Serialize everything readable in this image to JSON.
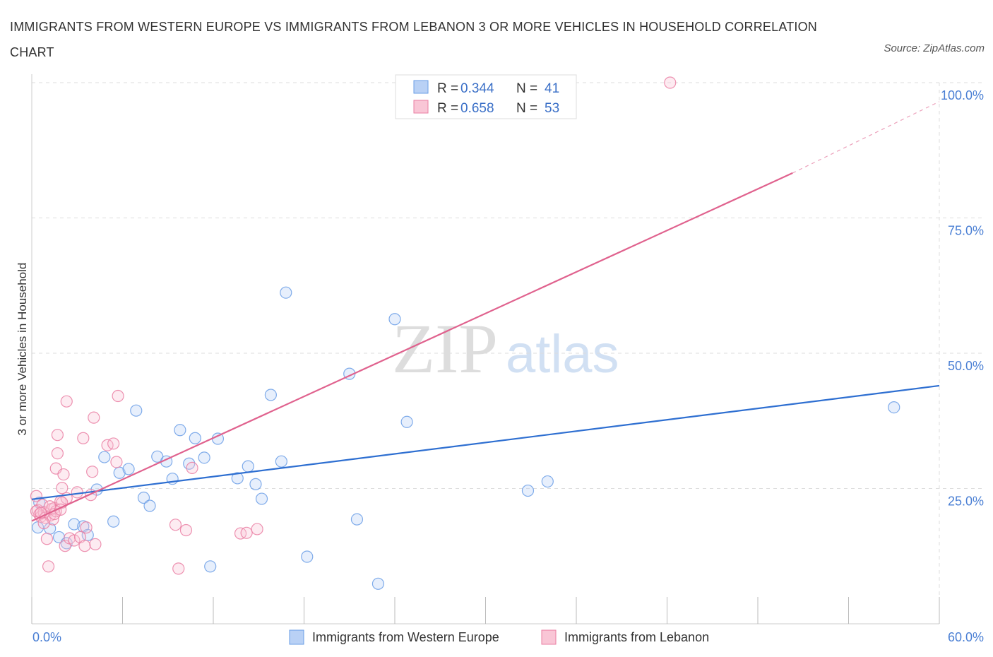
{
  "header": {
    "title": "IMMIGRANTS FROM WESTERN EUROPE VS IMMIGRANTS FROM LEBANON 3 OR MORE VEHICLES IN HOUSEHOLD CORRELATION CHART",
    "source": "Source: ZipAtlas.com"
  },
  "watermark": {
    "zip": "ZIP",
    "atlas": "atlas"
  },
  "stats": {
    "r_label": "R =",
    "n_label": "N =",
    "rows": [
      {
        "r": "0.344",
        "n": "41"
      },
      {
        "r": "0.658",
        "n": "53"
      }
    ]
  },
  "chart_data": {
    "type": "scatter",
    "ylabel": "3 or more Vehicles in Household",
    "xlim": [
      0,
      60
    ],
    "ylim": [
      0,
      100
    ],
    "x_tick_labels": [
      "0.0%",
      "60.0%"
    ],
    "y_ticks": [
      {
        "value": 25,
        "label": "25.0%"
      },
      {
        "value": 50,
        "label": "50.0%"
      },
      {
        "value": 75,
        "label": "75.0%"
      },
      {
        "value": 100,
        "label": "100.0%"
      }
    ],
    "legend_placement": "bottom-center",
    "colors": {
      "blue": "#6a9ee6",
      "pink": "#ea7fa3",
      "blue_line": "#2e6fd1",
      "pink_line": "#e0628e"
    },
    "series": [
      {
        "name": "Immigrants from Western Europe",
        "color": "#6a9ee6",
        "trend": {
          "x": [
            0,
            60
          ],
          "y": [
            23.0,
            44.0
          ]
        },
        "points": [
          [
            0.4,
            17.8
          ],
          [
            1.2,
            17.6
          ],
          [
            1.8,
            16.0
          ],
          [
            2.3,
            14.9
          ],
          [
            2.8,
            18.4
          ],
          [
            3.4,
            18.0
          ],
          [
            3.7,
            16.4
          ],
          [
            4.3,
            24.8
          ],
          [
            4.8,
            30.8
          ],
          [
            5.4,
            18.9
          ],
          [
            5.8,
            27.9
          ],
          [
            6.4,
            28.6
          ],
          [
            6.9,
            39.4
          ],
          [
            7.4,
            23.3
          ],
          [
            7.8,
            21.8
          ],
          [
            8.3,
            30.9
          ],
          [
            8.9,
            30.0
          ],
          [
            9.3,
            26.8
          ],
          [
            9.8,
            35.8
          ],
          [
            10.4,
            29.6
          ],
          [
            10.8,
            34.3
          ],
          [
            11.4,
            30.7
          ],
          [
            11.8,
            10.6
          ],
          [
            12.3,
            34.2
          ],
          [
            13.6,
            26.9
          ],
          [
            14.3,
            29.1
          ],
          [
            14.8,
            25.8
          ],
          [
            15.2,
            23.1
          ],
          [
            15.8,
            42.3
          ],
          [
            16.5,
            30.0
          ],
          [
            16.8,
            61.2
          ],
          [
            18.2,
            12.4
          ],
          [
            21.0,
            46.2
          ],
          [
            21.5,
            19.3
          ],
          [
            22.9,
            7.4
          ],
          [
            24.0,
            56.3
          ],
          [
            24.8,
            37.3
          ],
          [
            32.8,
            24.6
          ],
          [
            34.1,
            26.3
          ],
          [
            57.0,
            40.0
          ],
          [
            0.5,
            22.4
          ]
        ]
      },
      {
        "name": "Immigrants from Lebanon",
        "color": "#ea7fa3",
        "trend": {
          "x": [
            0,
            50.3
          ],
          "y": [
            19.0,
            83.3
          ]
        },
        "trend_dashed": {
          "x": [
            50.3,
            60
          ],
          "y": [
            83.3,
            96.5
          ]
        },
        "points": [
          [
            0.3,
            23.6
          ],
          [
            0.4,
            21.0
          ],
          [
            0.5,
            20.2
          ],
          [
            0.6,
            19.8
          ],
          [
            0.7,
            22.0
          ],
          [
            0.8,
            20.6
          ],
          [
            0.9,
            19.6
          ],
          [
            1.0,
            15.7
          ],
          [
            1.1,
            10.6
          ],
          [
            1.2,
            20.0
          ],
          [
            1.3,
            21.2
          ],
          [
            1.4,
            19.3
          ],
          [
            1.5,
            21.4
          ],
          [
            1.6,
            20.8
          ],
          [
            1.6,
            28.7
          ],
          [
            1.7,
            31.5
          ],
          [
            1.7,
            34.9
          ],
          [
            1.9,
            22.6
          ],
          [
            2.0,
            25.1
          ],
          [
            2.1,
            27.6
          ],
          [
            2.2,
            14.4
          ],
          [
            2.3,
            23.2
          ],
          [
            2.3,
            41.1
          ],
          [
            2.5,
            15.8
          ],
          [
            2.8,
            15.4
          ],
          [
            3.0,
            24.3
          ],
          [
            3.2,
            16.0
          ],
          [
            3.4,
            34.3
          ],
          [
            3.5,
            14.4
          ],
          [
            3.6,
            17.8
          ],
          [
            3.9,
            23.8
          ],
          [
            4.0,
            28.1
          ],
          [
            4.1,
            38.1
          ],
          [
            4.2,
            14.7
          ],
          [
            5.0,
            33.0
          ],
          [
            5.4,
            33.3
          ],
          [
            5.6,
            29.9
          ],
          [
            5.7,
            42.1
          ],
          [
            9.5,
            18.3
          ],
          [
            9.7,
            10.2
          ],
          [
            10.2,
            17.3
          ],
          [
            10.6,
            28.8
          ],
          [
            13.8,
            16.7
          ],
          [
            14.2,
            16.8
          ],
          [
            14.9,
            17.5
          ],
          [
            42.2,
            100.0
          ],
          [
            0.3,
            20.8
          ],
          [
            0.8,
            18.6
          ],
          [
            1.5,
            20.3
          ],
          [
            2.0,
            22.4
          ],
          [
            0.6,
            20.5
          ],
          [
            1.2,
            21.7
          ],
          [
            1.9,
            21.1
          ]
        ]
      }
    ]
  }
}
